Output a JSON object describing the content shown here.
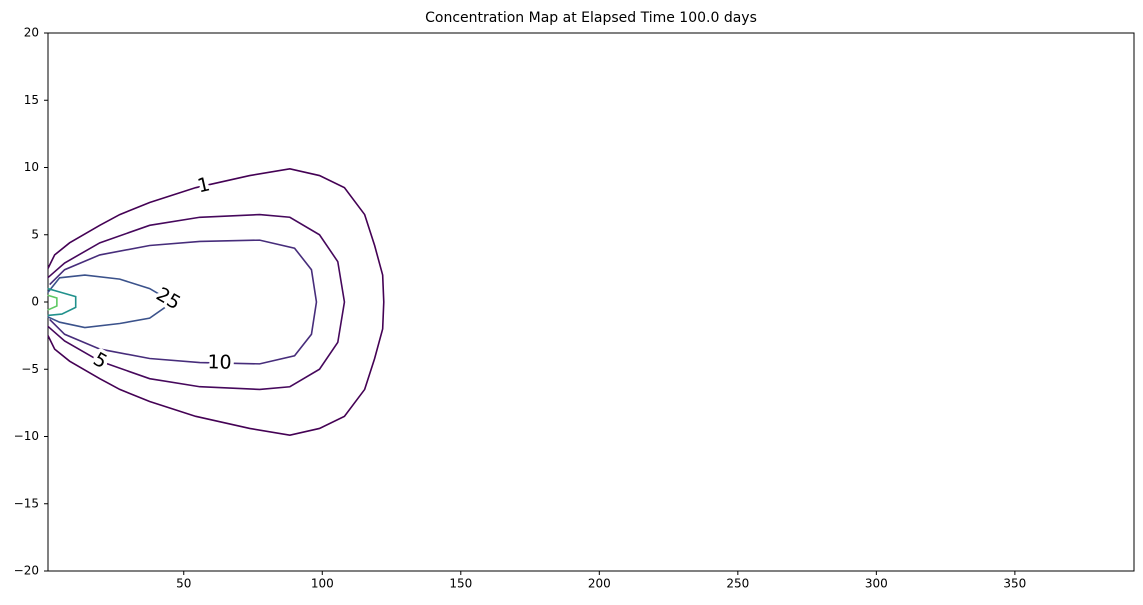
{
  "chart_data": {
    "type": "contour",
    "title": "Concentration Map at Elapsed Time 100.0 days",
    "xlim": [
      1,
      393
    ],
    "xticks": [
      50,
      100,
      150,
      200,
      250,
      300,
      350
    ],
    "ylim": [
      -20,
      20
    ],
    "yticks": [
      {
        "value": -20,
        "label": "−20"
      },
      {
        "value": -15,
        "label": "−15"
      },
      {
        "value": -10,
        "label": "−10"
      },
      {
        "value": -5,
        "label": "−5"
      },
      0,
      5,
      10,
      15,
      20
    ],
    "series": [
      {
        "level": 1,
        "color": "#440154",
        "x": [
          1.0,
          3.4,
          8.8,
          19.7,
          26.9,
          37.7,
          54.3,
          73.8,
          88.3,
          99,
          108,
          115.3,
          118.9,
          121.8,
          122.2,
          121.8,
          118.9,
          115.3,
          108,
          99,
          88.3,
          73.8,
          54.3,
          37.7,
          26.9,
          19.7,
          8.8,
          3.4,
          1.0
        ],
        "y": [
          2.5,
          3.5,
          4.4,
          5.7,
          6.5,
          7.4,
          8.5,
          9.4,
          9.9,
          9.4,
          8.5,
          6.5,
          4.2,
          2,
          0,
          -2,
          -4.2,
          -6.5,
          -8.5,
          -9.4,
          -9.9,
          -9.4,
          -8.5,
          -7.4,
          -6.5,
          -5.7,
          -4.4,
          -3.5,
          -2.5
        ]
      },
      {
        "level": 5,
        "color": "#46085c",
        "x": [
          0.9,
          7,
          19.7,
          37.7,
          55.8,
          77.4,
          88.3,
          99,
          105.6,
          108,
          105.6,
          99,
          88.3,
          77.4,
          55.8,
          37.7,
          19.7,
          7,
          0.9
        ],
        "y": [
          1.8,
          2.9,
          4.4,
          5.7,
          6.3,
          6.5,
          6.3,
          5,
          3,
          0,
          -3,
          -5,
          -6.3,
          -6.5,
          -6.3,
          -5.7,
          -4.4,
          -2.9,
          -1.8
        ]
      },
      {
        "level": 10,
        "color": "#472d7b",
        "x": [
          1.6,
          7,
          19.7,
          37.7,
          55.8,
          77.4,
          90,
          96.1,
          97.9,
          96.1,
          90,
          77.4,
          55.8,
          37.7,
          19.7,
          7,
          1.6
        ],
        "y": [
          1.3,
          2.4,
          3.5,
          4.2,
          4.5,
          4.6,
          4,
          2.4,
          0,
          -2.4,
          -4,
          -4.6,
          -4.5,
          -4.2,
          -3.5,
          -2.4,
          -1.3
        ]
      },
      {
        "level": 25,
        "color": "#3b528b",
        "x": [
          0.9,
          5.2,
          14.3,
          26.9,
          37.7,
          46,
          37.7,
          26.9,
          14.3,
          5.2,
          0.9
        ],
        "y": [
          0.7,
          1.8,
          2,
          1.7,
          1.0,
          0,
          -1.2,
          -1.6,
          -1.9,
          -1.5,
          -1.1
        ]
      },
      {
        "color": "#21918c",
        "x": [
          0.9,
          6.0,
          11.0,
          11.0,
          6.0,
          0.9
        ],
        "y": [
          1.0,
          0.7,
          0.4,
          -0.4,
          -0.9,
          -1.0
        ]
      },
      {
        "color": "#5ec962",
        "x": [
          0.9,
          4.2,
          4.2,
          0.9
        ],
        "y": [
          0.5,
          0.3,
          -0.3,
          -0.6
        ]
      }
    ]
  }
}
